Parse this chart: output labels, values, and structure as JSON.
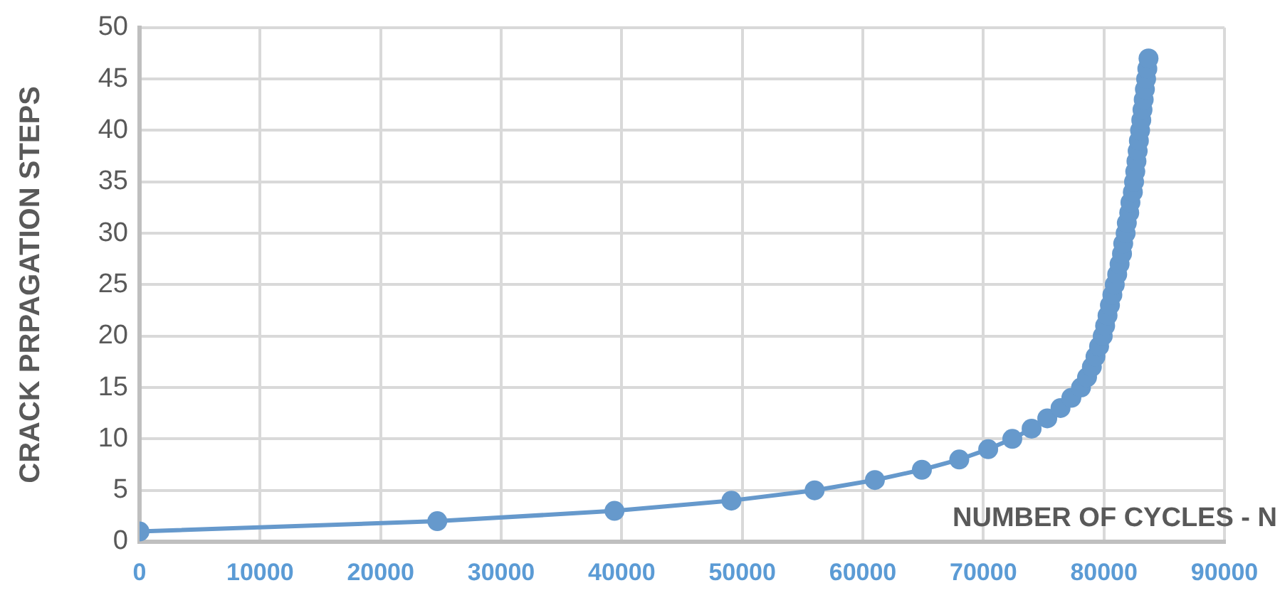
{
  "chart_data": {
    "type": "line",
    "xlabel": "NUMBER OF CYCLES - N",
    "ylabel": "CRACK PRPAGATION STEPS",
    "x": [
      0,
      24700,
      39400,
      49100,
      56000,
      61000,
      64900,
      68000,
      70400,
      72400,
      74000,
      75300,
      76400,
      77300,
      78100,
      78600,
      79000,
      79300,
      79600,
      79900,
      80100,
      80300,
      80500,
      80700,
      80900,
      81100,
      81300,
      81500,
      81600,
      81800,
      81900,
      82100,
      82200,
      82400,
      82500,
      82600,
      82700,
      82800,
      82900,
      83000,
      83100,
      83200,
      83300,
      83400,
      83500,
      83600,
      83700
    ],
    "series": [
      {
        "color": "#6699cc",
        "values": [
          1,
          2,
          3,
          4,
          5,
          6,
          7,
          8,
          9,
          10,
          11,
          12,
          13,
          14,
          15,
          16,
          17,
          18,
          19,
          20,
          21,
          22,
          23,
          24,
          25,
          26,
          27,
          28,
          29,
          30,
          31,
          32,
          33,
          34,
          35,
          36,
          37,
          38,
          39,
          40,
          41,
          42,
          43,
          44,
          45,
          46,
          47
        ]
      }
    ],
    "xlim": [
      0,
      90000
    ],
    "xticks": [
      0,
      10000,
      20000,
      30000,
      40000,
      50000,
      60000,
      70000,
      80000,
      90000
    ],
    "ylim": [
      0,
      50
    ],
    "yticks": [
      0,
      5,
      10,
      15,
      20,
      25,
      30,
      35,
      40,
      45,
      50
    ],
    "grid": true,
    "legend": false,
    "marker": "circle",
    "line_style": "solid"
  }
}
